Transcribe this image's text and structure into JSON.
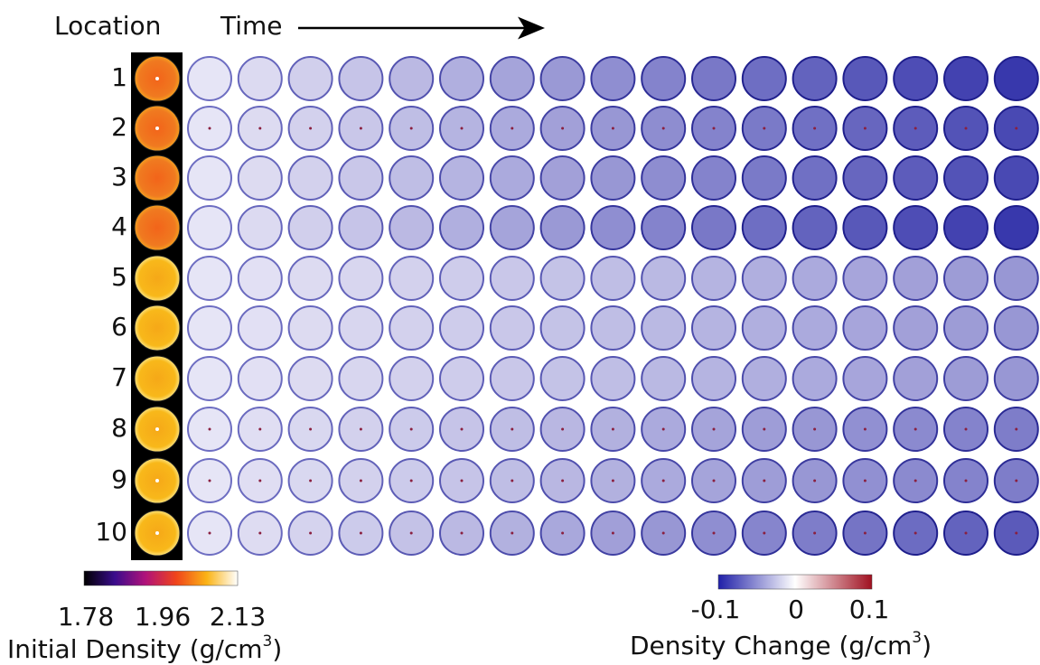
{
  "header": {
    "location": "Location",
    "time": "Time"
  },
  "rows": [
    "1",
    "2",
    "3",
    "4",
    "5",
    "6",
    "7",
    "8",
    "9",
    "10"
  ],
  "initial_colorbar": {
    "ticks": [
      "1.78",
      "1.96",
      "2.13"
    ],
    "label": "Initial Density (g/cm",
    "label_sup": "3",
    "label_end": ")"
  },
  "change_colorbar": {
    "ticks": [
      "-0.1",
      "0",
      "0.1"
    ],
    "label": "Density Change (g/cm",
    "label_sup": "3",
    "label_end": ")"
  }
}
